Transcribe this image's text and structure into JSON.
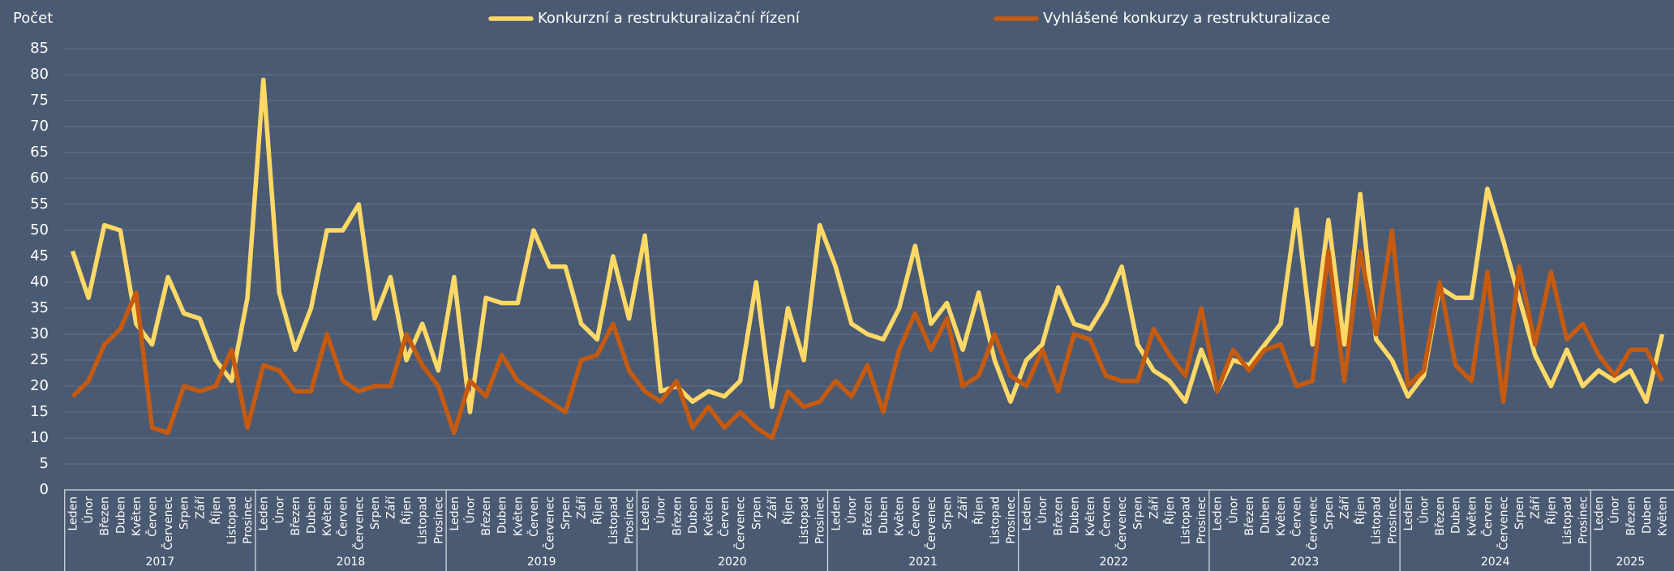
{
  "chart_data": {
    "type": "line",
    "y_label": "Počet",
    "categories": [
      "Leden",
      "Únor",
      "Březen",
      "Duben",
      "Květen",
      "Červen",
      "Červenec",
      "Srpen",
      "Září",
      "Říjen",
      "Listopad",
      "Prosinec",
      "Leden",
      "Únor",
      "Březen",
      "Duben",
      "Květen",
      "Červen",
      "Červenec",
      "Srpen",
      "Září",
      "Říjen",
      "Listopad",
      "Prosinec",
      "Leden",
      "Únor",
      "Březen",
      "Duben",
      "Květen",
      "Červen",
      "Červenec",
      "Srpen",
      "Září",
      "Říjen",
      "Listopad",
      "Prosinec",
      "Leden",
      "Únor",
      "Březen",
      "Duben",
      "Květen",
      "Červen",
      "Červenec",
      "Srpen",
      "Září",
      "Říjen",
      "Listopad",
      "Prosinec",
      "Leden",
      "Únor",
      "Březen",
      "Duben",
      "Květen",
      "Červen",
      "Červenec",
      "Srpen",
      "Září",
      "Říjen",
      "Listopad",
      "Prosinec",
      "Leden",
      "Únor",
      "Březen",
      "Duben",
      "Květen",
      "Červen",
      "Červenec",
      "Srpen",
      "Září",
      "Říjen",
      "Listopad",
      "Prosinec",
      "Leden",
      "Únor",
      "Březen",
      "Duben",
      "Květen",
      "Červen",
      "Červenec",
      "Srpen",
      "Září",
      "Říjen",
      "Listopad",
      "Prosinec",
      "Leden",
      "Únor",
      "Březen",
      "Duben",
      "Květen",
      "Červen",
      "Červenec",
      "Srpen",
      "Září",
      "Říjen",
      "Listopad",
      "Prosinec",
      "Leden",
      "Únor",
      "Březen",
      "Duben",
      "Květen"
    ],
    "year_labels": [
      "2017",
      "2018",
      "2019",
      "2020",
      "2021",
      "2022",
      "2023",
      "2024",
      "2025"
    ],
    "series": [
      {
        "name": "Konkurzní a restrukturalizační řízení",
        "color": "#ffd966",
        "values": [
          46,
          37,
          51,
          50,
          32,
          28,
          41,
          34,
          33,
          25,
          21,
          37,
          79,
          38,
          27,
          35,
          50,
          50,
          55,
          33,
          41,
          25,
          32,
          23,
          41,
          15,
          37,
          36,
          36,
          50,
          43,
          43,
          32,
          29,
          45,
          33,
          49,
          19,
          20,
          17,
          19,
          18,
          21,
          40,
          16,
          35,
          25,
          51,
          43,
          32,
          30,
          29,
          35,
          47,
          32,
          36,
          27,
          38,
          25,
          17,
          25,
          28,
          39,
          32,
          31,
          36,
          43,
          28,
          23,
          21,
          17,
          27,
          19,
          25,
          24,
          28,
          32,
          54,
          28,
          52,
          28,
          57,
          29,
          25,
          18,
          22,
          39,
          37,
          37,
          58,
          48,
          37,
          26,
          20,
          27,
          20,
          23,
          21,
          23,
          17,
          30
        ]
      },
      {
        "name": "Vyhlášené konkurzy a restrukturalizace",
        "color": "#c55a11",
        "values": [
          18,
          21,
          28,
          31,
          38,
          12,
          11,
          20,
          19,
          20,
          27,
          12,
          24,
          23,
          19,
          19,
          30,
          21,
          19,
          20,
          20,
          30,
          24,
          20,
          11,
          21,
          18,
          26,
          21,
          19,
          17,
          15,
          25,
          26,
          32,
          23,
          19,
          17,
          21,
          12,
          16,
          12,
          15,
          12,
          10,
          19,
          16,
          17,
          21,
          18,
          24,
          15,
          27,
          34,
          27,
          33,
          20,
          22,
          30,
          22,
          20,
          27,
          19,
          30,
          29,
          22,
          21,
          21,
          31,
          26,
          22,
          35,
          19,
          27,
          23,
          27,
          28,
          20,
          21,
          46,
          21,
          46,
          30,
          50,
          20,
          23,
          40,
          24,
          21,
          42,
          17,
          43,
          28,
          42,
          29,
          32,
          26,
          22,
          27,
          27,
          21
        ]
      }
    ],
    "ylim": [
      0,
      85
    ],
    "yticks": [
      0,
      5,
      10,
      15,
      20,
      25,
      30,
      35,
      40,
      45,
      50,
      55,
      60,
      65,
      70,
      75,
      80,
      85
    ],
    "grid": true,
    "legend": "top"
  }
}
